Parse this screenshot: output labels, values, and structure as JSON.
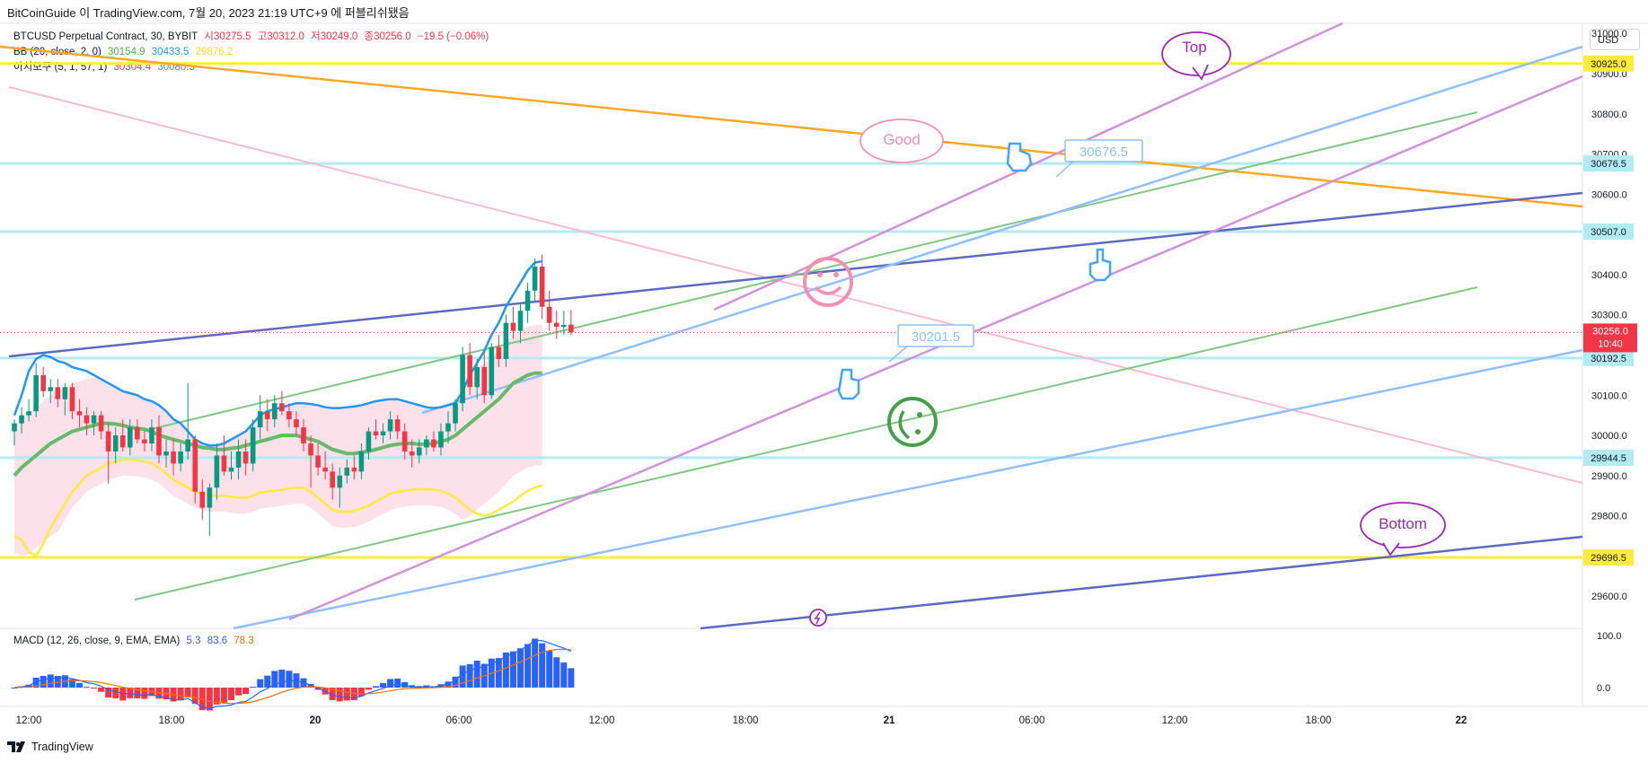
{
  "header": {
    "text": "BitCoinGuide 이 TradingView.com, 7월 20, 2023 21:19 UTC+9 에 퍼블리쉬됐음"
  },
  "legend": {
    "symbol": "BTCUSD Perpetual Contract, 30, BYBIT",
    "open_label": "시",
    "open": "30275.5",
    "high_label": "고",
    "high": "30312.0",
    "low_label": "저",
    "low": "30249.0",
    "close_label": "종",
    "close": "30256.0",
    "change": "−19.5 (−0.06%)",
    "bb_name": "BB (20, close, 2, 0)",
    "bb_basis": "30154.9",
    "bb_upper": "30433.5",
    "bb_lower": "29876.2",
    "ichi_name": "이치모쿠 (5, 1, 57, 1)",
    "ichi_a": "30304.4",
    "ichi_b": "30080.5",
    "macd_name": "MACD (12, 26, close, 9, EMA, EMA)",
    "macd_hist": "5.3",
    "macd_line": "83.6",
    "macd_signal": "78.3"
  },
  "currency_button": "USD",
  "footer": {
    "brand": "TradingView"
  },
  "annotations": {
    "top": "Top",
    "good": "Good",
    "bottom": "Bottom",
    "price_callout_1": "30676.5",
    "price_callout_2": "30201.5"
  },
  "colors": {
    "up": "#089981",
    "down": "#f23645",
    "bb_basis": "#4caf50",
    "bb_upper": "#2196f3",
    "bb_lower": "#ffeb3b",
    "accent_purple": "#9c27b0",
    "callout_blue": "#90bff9"
  },
  "chart_data": {
    "type": "candlestick",
    "symbol": "BTCUSD Perpetual Contract",
    "interval": "30",
    "exchange": "BYBIT",
    "ylim": [
      29520,
      31025
    ],
    "y_ticks": [
      29600,
      29700,
      29800,
      29900,
      30000,
      30100,
      30200,
      30300,
      30400,
      30500,
      30600,
      30700,
      30800,
      30900,
      31000
    ],
    "y_tick_labels": [
      "29600.0",
      "29700.0",
      "29800.0",
      "29900.0",
      "30000.0",
      "30100.0",
      "30200.0",
      "30300.0",
      "30400.0",
      "30500.0",
      "30600.0",
      "30700.0",
      "30800.0",
      "30900.0",
      "31000.0"
    ],
    "x_tick_labels": [
      "12:00",
      "18:00",
      "20",
      "06:00",
      "12:00",
      "18:00",
      "21",
      "06:00",
      "12:00",
      "18:00",
      "22"
    ],
    "last_price": "30256.0",
    "countdown": "10:40",
    "price_levels": [
      {
        "value": 30925.0,
        "label": "30925.0",
        "color": "#ffeb3b"
      },
      {
        "value": 30676.5,
        "label": "30676.5",
        "color": "#b2ebf2"
      },
      {
        "value": 30507.0,
        "label": "30507.0",
        "color": "#b2ebf2"
      },
      {
        "value": 30192.5,
        "label": "30192.5",
        "color": "#b2ebf2"
      },
      {
        "value": 29944.5,
        "label": "29944.5",
        "color": "#b2ebf2"
      },
      {
        "value": 29696.5,
        "label": "29696.5",
        "color": "#ffeb3b"
      }
    ],
    "candles": [
      {
        "o": 30010,
        "h": 30040,
        "l": 29975,
        "c": 30030
      },
      {
        "o": 30030,
        "h": 30070,
        "l": 30005,
        "c": 30050
      },
      {
        "o": 30050,
        "h": 30090,
        "l": 30035,
        "c": 30060
      },
      {
        "o": 30060,
        "h": 30180,
        "l": 30045,
        "c": 30150
      },
      {
        "o": 30150,
        "h": 30170,
        "l": 30095,
        "c": 30110
      },
      {
        "o": 30110,
        "h": 30140,
        "l": 30080,
        "c": 30120
      },
      {
        "o": 30120,
        "h": 30140,
        "l": 30070,
        "c": 30090
      },
      {
        "o": 30090,
        "h": 30130,
        "l": 30050,
        "c": 30120
      },
      {
        "o": 30120,
        "h": 30130,
        "l": 30040,
        "c": 30060
      },
      {
        "o": 30060,
        "h": 30090,
        "l": 30020,
        "c": 30050
      },
      {
        "o": 30050,
        "h": 30070,
        "l": 30000,
        "c": 30030
      },
      {
        "o": 30030,
        "h": 30060,
        "l": 30000,
        "c": 30050
      },
      {
        "o": 30050,
        "h": 30060,
        "l": 29990,
        "c": 30010
      },
      {
        "o": 30010,
        "h": 30030,
        "l": 29880,
        "c": 29960
      },
      {
        "o": 29960,
        "h": 30020,
        "l": 29930,
        "c": 30000
      },
      {
        "o": 30000,
        "h": 30040,
        "l": 29960,
        "c": 29970
      },
      {
        "o": 29970,
        "h": 30040,
        "l": 29950,
        "c": 30020
      },
      {
        "o": 30020,
        "h": 30040,
        "l": 29980,
        "c": 29990
      },
      {
        "o": 29990,
        "h": 30010,
        "l": 29960,
        "c": 29980
      },
      {
        "o": 29980,
        "h": 30040,
        "l": 29960,
        "c": 30020
      },
      {
        "o": 30020,
        "h": 30050,
        "l": 29930,
        "c": 29950
      },
      {
        "o": 29950,
        "h": 29990,
        "l": 29920,
        "c": 29960
      },
      {
        "o": 29960,
        "h": 29990,
        "l": 29900,
        "c": 29930
      },
      {
        "o": 29930,
        "h": 29980,
        "l": 29910,
        "c": 29960
      },
      {
        "o": 29960,
        "h": 30130,
        "l": 29940,
        "c": 29990
      },
      {
        "o": 29990,
        "h": 30000,
        "l": 29830,
        "c": 29860
      },
      {
        "o": 29860,
        "h": 29890,
        "l": 29790,
        "c": 29820
      },
      {
        "o": 29820,
        "h": 29880,
        "l": 29750,
        "c": 29870
      },
      {
        "o": 29870,
        "h": 29980,
        "l": 29840,
        "c": 29950
      },
      {
        "o": 29950,
        "h": 30000,
        "l": 29900,
        "c": 29910
      },
      {
        "o": 29910,
        "h": 29960,
        "l": 29890,
        "c": 29920
      },
      {
        "o": 29920,
        "h": 29990,
        "l": 29890,
        "c": 29960
      },
      {
        "o": 29960,
        "h": 29990,
        "l": 29900,
        "c": 29930
      },
      {
        "o": 29930,
        "h": 30040,
        "l": 29910,
        "c": 30020
      },
      {
        "o": 30020,
        "h": 30100,
        "l": 29990,
        "c": 30060
      },
      {
        "o": 30060,
        "h": 30090,
        "l": 30010,
        "c": 30040
      },
      {
        "o": 30040,
        "h": 30100,
        "l": 30020,
        "c": 30080
      },
      {
        "o": 30080,
        "h": 30110,
        "l": 30050,
        "c": 30060
      },
      {
        "o": 30060,
        "h": 30080,
        "l": 30020,
        "c": 30040
      },
      {
        "o": 30040,
        "h": 30060,
        "l": 30000,
        "c": 30020
      },
      {
        "o": 30020,
        "h": 30040,
        "l": 29960,
        "c": 29980
      },
      {
        "o": 29980,
        "h": 30000,
        "l": 29870,
        "c": 29950
      },
      {
        "o": 29950,
        "h": 29980,
        "l": 29900,
        "c": 29920
      },
      {
        "o": 29920,
        "h": 29960,
        "l": 29890,
        "c": 29910
      },
      {
        "o": 29910,
        "h": 29930,
        "l": 29840,
        "c": 29870
      },
      {
        "o": 29870,
        "h": 29920,
        "l": 29820,
        "c": 29900
      },
      {
        "o": 29900,
        "h": 29940,
        "l": 29880,
        "c": 29920
      },
      {
        "o": 29920,
        "h": 29950,
        "l": 29890,
        "c": 29910
      },
      {
        "o": 29910,
        "h": 29980,
        "l": 29890,
        "c": 29960
      },
      {
        "o": 29960,
        "h": 30020,
        "l": 29940,
        "c": 30010
      },
      {
        "o": 30010,
        "h": 30040,
        "l": 29990,
        "c": 30000
      },
      {
        "o": 30000,
        "h": 30030,
        "l": 29980,
        "c": 30010
      },
      {
        "o": 30010,
        "h": 30060,
        "l": 29990,
        "c": 30040
      },
      {
        "o": 30040,
        "h": 30050,
        "l": 29990,
        "c": 30010
      },
      {
        "o": 30010,
        "h": 30030,
        "l": 29940,
        "c": 29960
      },
      {
        "o": 29960,
        "h": 29990,
        "l": 29920,
        "c": 29950
      },
      {
        "o": 29950,
        "h": 29990,
        "l": 29930,
        "c": 29970
      },
      {
        "o": 29970,
        "h": 30000,
        "l": 29950,
        "c": 29990
      },
      {
        "o": 29990,
        "h": 30010,
        "l": 29960,
        "c": 29970
      },
      {
        "o": 29970,
        "h": 30030,
        "l": 29950,
        "c": 30010
      },
      {
        "o": 30010,
        "h": 30060,
        "l": 29980,
        "c": 30030
      },
      {
        "o": 30030,
        "h": 30090,
        "l": 30010,
        "c": 30080
      },
      {
        "o": 30080,
        "h": 30220,
        "l": 30060,
        "c": 30200
      },
      {
        "o": 30200,
        "h": 30230,
        "l": 30100,
        "c": 30120
      },
      {
        "o": 30120,
        "h": 30190,
        "l": 30090,
        "c": 30170
      },
      {
        "o": 30170,
        "h": 30210,
        "l": 30080,
        "c": 30100
      },
      {
        "o": 30100,
        "h": 30230,
        "l": 30090,
        "c": 30220
      },
      {
        "o": 30220,
        "h": 30250,
        "l": 30170,
        "c": 30190
      },
      {
        "o": 30190,
        "h": 30300,
        "l": 30170,
        "c": 30280
      },
      {
        "o": 30280,
        "h": 30320,
        "l": 30240,
        "c": 30260
      },
      {
        "o": 30260,
        "h": 30330,
        "l": 30230,
        "c": 30310
      },
      {
        "o": 30310,
        "h": 30380,
        "l": 30280,
        "c": 30360
      },
      {
        "o": 30360,
        "h": 30440,
        "l": 30330,
        "c": 30420
      },
      {
        "o": 30420,
        "h": 30450,
        "l": 30290,
        "c": 30320
      },
      {
        "o": 30320,
        "h": 30360,
        "l": 30260,
        "c": 30280
      },
      {
        "o": 30280,
        "h": 30310,
        "l": 30240,
        "c": 30270
      },
      {
        "o": 30270,
        "h": 30310,
        "l": 30250,
        "c": 30275
      },
      {
        "o": 30275.5,
        "h": 30312,
        "l": 30249,
        "c": 30256
      }
    ],
    "bb_upper": [
      30050,
      30100,
      30160,
      30190,
      30200,
      30195,
      30185,
      30180,
      30170,
      30165,
      30160,
      30150,
      30140,
      30130,
      30120,
      30110,
      30105,
      30100,
      30090,
      30085,
      30075,
      30060,
      30040,
      30030,
      30010,
      29990,
      29980,
      29975,
      29975,
      29980,
      29990,
      30000,
      30010,
      30030,
      30050,
      30060,
      30065,
      30070,
      30075,
      30080,
      30080,
      30078,
      30075,
      30070,
      30068,
      30068,
      30070,
      30072,
      30075,
      30080,
      30085,
      30088,
      30090,
      30090,
      30085,
      30080,
      30075,
      30070,
      30068,
      30070,
      30075,
      30080,
      30110,
      30150,
      30180,
      30210,
      30250,
      30280,
      30320,
      30350,
      30380,
      30410,
      30430,
      30433
    ],
    "bb_basis": [
      29900,
      29920,
      29935,
      29950,
      29965,
      29980,
      29990,
      30000,
      30010,
      30015,
      30020,
      30025,
      30030,
      30030,
      30028,
      30025,
      30020,
      30018,
      30015,
      30010,
      30000,
      29995,
      29990,
      29985,
      29980,
      29975,
      29970,
      29968,
      29965,
      29965,
      29968,
      29970,
      29975,
      29980,
      29985,
      29990,
      29995,
      30000,
      30000,
      30000,
      29995,
      29990,
      29985,
      29975,
      29965,
      29960,
      29955,
      29955,
      29958,
      29960,
      29965,
      29970,
      29975,
      29978,
      29980,
      29980,
      29978,
      29978,
      29980,
      29985,
      29990,
      30000,
      30015,
      30030,
      30045,
      30060,
      30075,
      30090,
      30110,
      30130,
      30140,
      30150,
      30155,
      30155
    ],
    "bb_lower": [
      29750,
      29740,
      29710,
      29700,
      29730,
      29770,
      29800,
      29830,
      29860,
      29880,
      29900,
      29910,
      29920,
      29930,
      29935,
      29940,
      29940,
      29938,
      29935,
      29930,
      29920,
      29905,
      29890,
      29880,
      29870,
      29860,
      29855,
      29850,
      29850,
      29850,
      29848,
      29845,
      29845,
      29850,
      29858,
      29860,
      29862,
      29865,
      29868,
      29870,
      29870,
      29860,
      29845,
      29830,
      29815,
      29810,
      29810,
      29812,
      29818,
      29825,
      29835,
      29845,
      29855,
      29860,
      29862,
      29865,
      29866,
      29866,
      29865,
      29862,
      29855,
      29845,
      29830,
      29815,
      29805,
      29800,
      29805,
      29815,
      29825,
      29835,
      29850,
      29862,
      29870,
      29876
    ]
  }
}
